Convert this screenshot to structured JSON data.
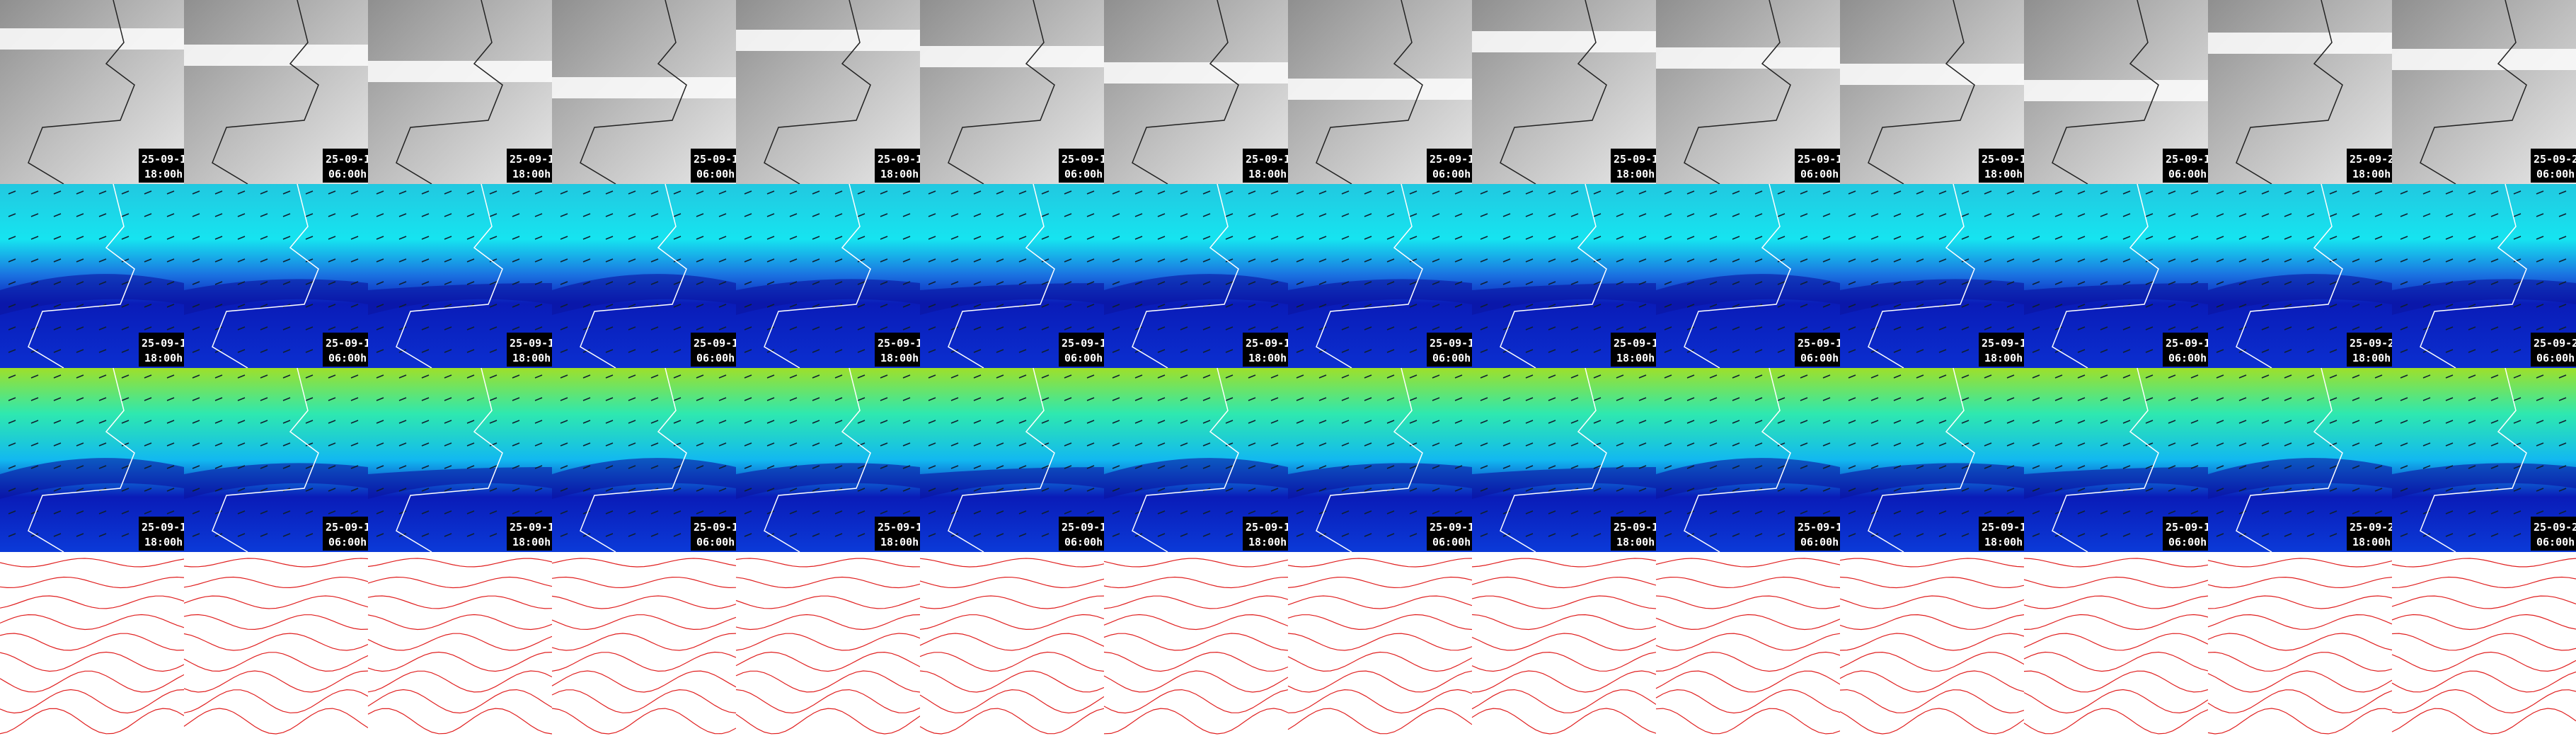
{
  "tiles": [
    {
      "date": "25-09-1",
      "time": "18:00h"
    },
    {
      "date": "25-09-1",
      "time": "06:00h"
    },
    {
      "date": "25-09-1",
      "time": "18:00h"
    },
    {
      "date": "25-09-1",
      "time": "06:00h"
    },
    {
      "date": "25-09-1",
      "time": "18:00h"
    },
    {
      "date": "25-09-1",
      "time": "06:00h"
    },
    {
      "date": "25-09-1",
      "time": "18:00h"
    },
    {
      "date": "25-09-1",
      "time": "06:00h"
    },
    {
      "date": "25-09-1",
      "time": "18:00h"
    },
    {
      "date": "25-09-1",
      "time": "06:00h"
    },
    {
      "date": "25-09-1",
      "time": "18:00h"
    },
    {
      "date": "25-09-1",
      "time": "06:00h"
    },
    {
      "date": "25-09-2",
      "time": "18:00h"
    },
    {
      "date": "25-09-2",
      "time": "06:00h"
    }
  ]
}
